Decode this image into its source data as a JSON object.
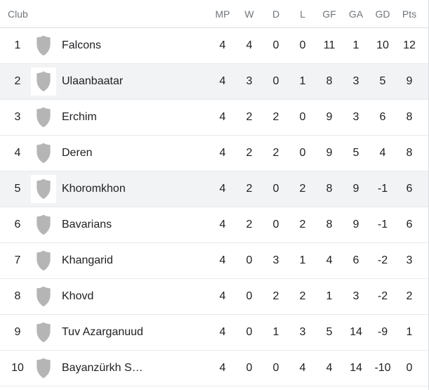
{
  "table": {
    "club_column_label": "Club",
    "stat_columns": [
      "MP",
      "W",
      "D",
      "L",
      "GF",
      "GA",
      "GD",
      "Pts"
    ],
    "rows": [
      {
        "pos": "1",
        "team": "Falcons",
        "stats": [
          "4",
          "4",
          "0",
          "0",
          "11",
          "1",
          "10",
          "12"
        ],
        "highlighted": false
      },
      {
        "pos": "2",
        "team": "Ulaanbaatar",
        "stats": [
          "4",
          "3",
          "0",
          "1",
          "8",
          "3",
          "5",
          "9"
        ],
        "highlighted": true
      },
      {
        "pos": "3",
        "team": "Erchim",
        "stats": [
          "4",
          "2",
          "2",
          "0",
          "9",
          "3",
          "6",
          "8"
        ],
        "highlighted": false
      },
      {
        "pos": "4",
        "team": "Deren",
        "stats": [
          "4",
          "2",
          "2",
          "0",
          "9",
          "5",
          "4",
          "8"
        ],
        "highlighted": false
      },
      {
        "pos": "5",
        "team": "Khoromkhon",
        "stats": [
          "4",
          "2",
          "0",
          "2",
          "8",
          "9",
          "-1",
          "6"
        ],
        "highlighted": true
      },
      {
        "pos": "6",
        "team": "Bavarians",
        "stats": [
          "4",
          "2",
          "0",
          "2",
          "8",
          "9",
          "-1",
          "6"
        ],
        "highlighted": false
      },
      {
        "pos": "7",
        "team": "Khangarid",
        "stats": [
          "4",
          "0",
          "3",
          "1",
          "4",
          "6",
          "-2",
          "3"
        ],
        "highlighted": false
      },
      {
        "pos": "8",
        "team": "Khovd",
        "stats": [
          "4",
          "0",
          "2",
          "2",
          "1",
          "3",
          "-2",
          "2"
        ],
        "highlighted": false
      },
      {
        "pos": "9",
        "team": "Tuv Azarganuud",
        "stats": [
          "4",
          "0",
          "1",
          "3",
          "5",
          "14",
          "-9",
          "1"
        ],
        "highlighted": false
      },
      {
        "pos": "10",
        "team": "Bayanzürkh S…",
        "stats": [
          "4",
          "0",
          "0",
          "4",
          "4",
          "14",
          "-10",
          "0"
        ],
        "highlighted": false
      }
    ],
    "team_logo_icon": "shield-icon"
  },
  "colors": {
    "text": "#202124",
    "muted": "#70757a",
    "divider": "#e8eaed",
    "header-divider": "#dadce0",
    "highlight": "#f1f3f4",
    "shield": "#b5b5b5",
    "bg": "#ffffff"
  }
}
